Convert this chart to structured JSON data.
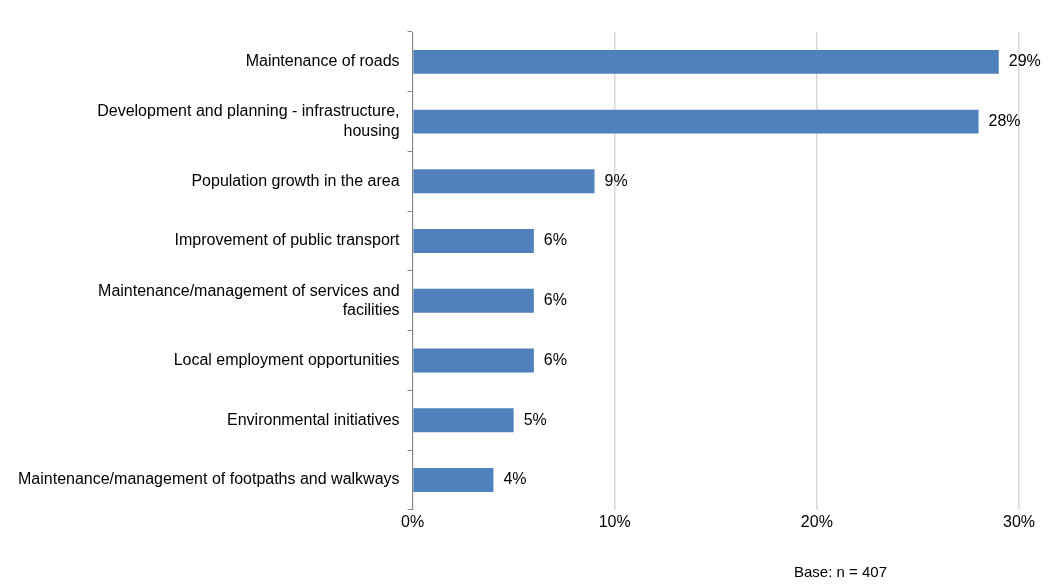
{
  "chart_data": {
    "type": "bar",
    "orientation": "horizontal",
    "categories": [
      "Maintenance of roads",
      "Development and planning - infrastructure, housing",
      "Population growth in the area",
      "Improvement of public transport",
      "Maintenance/management of services and facilities",
      "Local employment opportunities",
      "Environmental initiatives",
      "Maintenance/management of footpaths and walkways"
    ],
    "values": [
      29,
      28,
      9,
      6,
      6,
      6,
      5,
      4
    ],
    "value_labels": [
      "29%",
      "28%",
      "9%",
      "6%",
      "6%",
      "6%",
      "5%",
      "4%"
    ],
    "color": "#4f81bd",
    "xlim": [
      0,
      30
    ],
    "xticks": [
      {
        "value": 0,
        "label": "0%"
      },
      {
        "value": 10,
        "label": "10%"
      },
      {
        "value": 20,
        "label": "20%"
      },
      {
        "value": 30,
        "label": "30%"
      }
    ],
    "grid": "x",
    "annotations": [
      "Base: n = 407"
    ]
  }
}
